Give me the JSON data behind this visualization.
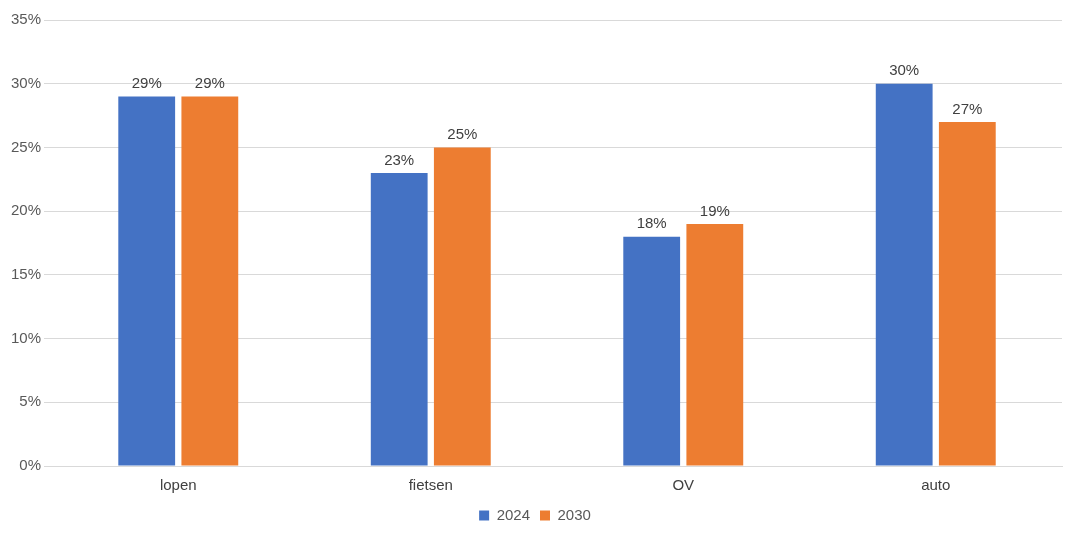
{
  "chart_data": {
    "type": "bar",
    "categories": [
      "lopen",
      "fietsen",
      "OV",
      "auto"
    ],
    "series": [
      {
        "name": "2024",
        "color": "#4472c4",
        "values": [
          29,
          23,
          18,
          30
        ],
        "value_labels": [
          "29%",
          "23%",
          "18%",
          "30%"
        ]
      },
      {
        "name": "2030",
        "color": "#ed7d31",
        "values": [
          29,
          25,
          19,
          27
        ],
        "value_labels": [
          "29%",
          "25%",
          "19%",
          "27%"
        ]
      }
    ],
    "ylim": [
      0,
      35
    ],
    "yticks": [
      {
        "value": 0,
        "label": "0%"
      },
      {
        "value": 5,
        "label": "5%"
      },
      {
        "value": 10,
        "label": "10%"
      },
      {
        "value": 15,
        "label": "15%"
      },
      {
        "value": 20,
        "label": "20%"
      },
      {
        "value": 25,
        "label": "25%"
      },
      {
        "value": 30,
        "label": "30%"
      },
      {
        "value": 35,
        "label": "35%"
      }
    ],
    "grid": "y",
    "legend": "bottom"
  }
}
